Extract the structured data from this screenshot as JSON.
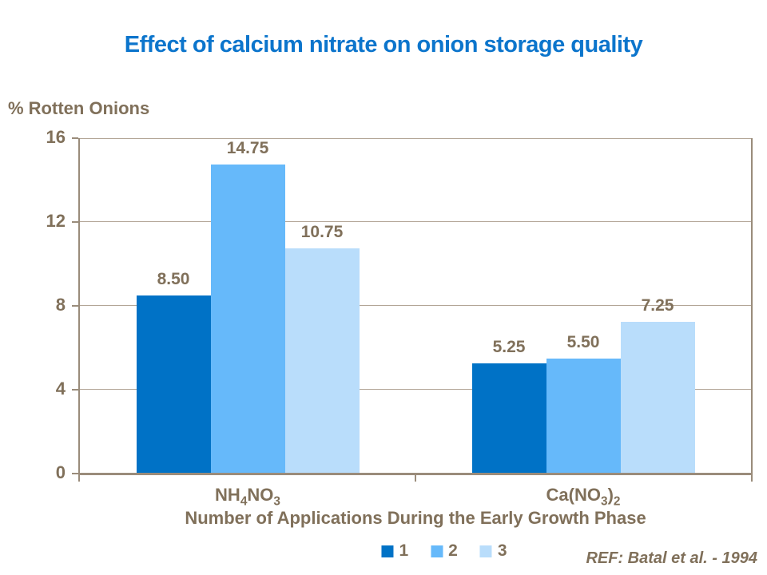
{
  "title": "Effect of calcium nitrate on onion storage quality",
  "y_axis_label": "% Rotten Onions",
  "x_axis_title": "Number of Applications During the Early Growth Phase",
  "ref_note": "REF: Batal et al. - 1994",
  "colors": {
    "title": "#0c75cc",
    "text": "#80705a",
    "axis": "#9a8c7b",
    "grid": "#b3a697",
    "series": [
      "#0072c6",
      "#66b9fa",
      "#b9ddfb"
    ]
  },
  "chart_data": {
    "type": "bar",
    "title": "Effect of calcium nitrate on onion storage quality",
    "ylabel": "% Rotten Onions",
    "xlabel": "Number of Applications During the Early Growth Phase",
    "ylim": [
      0,
      16
    ],
    "yticks": [
      0,
      4,
      8,
      12,
      16
    ],
    "grid": true,
    "legend_position": "bottom",
    "legend_labels": [
      "1",
      "2",
      "3"
    ],
    "categories": [
      "NH₄NO₃",
      "Ca(NO₃)₂"
    ],
    "categories_rich": [
      [
        {
          "t": "NH"
        },
        {
          "t": "4",
          "sub": true
        },
        {
          "t": "NO"
        },
        {
          "t": "3",
          "sub": true
        }
      ],
      [
        {
          "t": "Ca(NO"
        },
        {
          "t": "3",
          "sub": true
        },
        {
          "t": ")"
        },
        {
          "t": "2",
          "sub": true
        }
      ]
    ],
    "series": [
      {
        "name": "1",
        "values": [
          8.5,
          5.25
        ],
        "labels": [
          "8.50",
          "5.25"
        ]
      },
      {
        "name": "2",
        "values": [
          14.75,
          5.5
        ],
        "labels": [
          "14.75",
          "5.50"
        ]
      },
      {
        "name": "3",
        "values": [
          10.75,
          7.25
        ],
        "labels": [
          "10.75",
          "7.25"
        ]
      }
    ],
    "annotation": "REF: Batal et al. - 1994"
  }
}
